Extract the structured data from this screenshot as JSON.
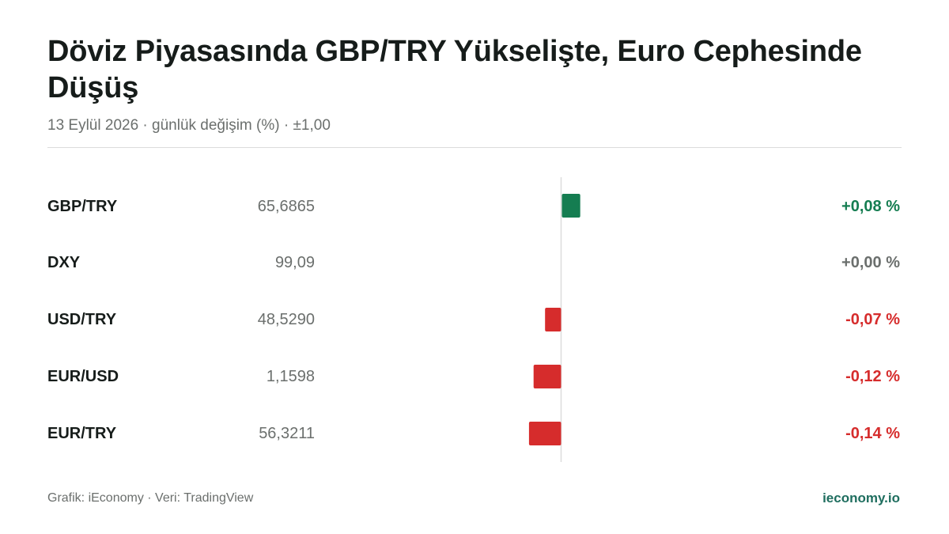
{
  "header": {
    "title": "Döviz Piyasasında GBP/TRY Yükselişte, Euro Cephesinde Düşüş",
    "subtitle": "13 Eylül 2026 · günlük değişim (%) · ±1,00"
  },
  "colors": {
    "positive": "#157d51",
    "negative": "#d62c2c",
    "neutral": "#6b6f6d",
    "axis": "#dcdcdc"
  },
  "chart_data": {
    "type": "bar",
    "orientation": "horizontal",
    "title": "Döviz Piyasasında GBP/TRY Yükselişte, Euro Cephesinde Düşüş",
    "subtitle": "13 Eylül 2026 · günlük değişim (%) · ±1,00",
    "categories": [
      "GBP/TRY",
      "DXY",
      "USD/TRY",
      "EUR/USD",
      "EUR/TRY"
    ],
    "prices": [
      "65,6865",
      "99,09",
      "48,5290",
      "1,1598",
      "56,3211"
    ],
    "values": [
      0.08,
      0.0,
      -0.07,
      -0.12,
      -0.14
    ],
    "value_labels": [
      "+0,08 %",
      "+0,00 %",
      "-0,07 %",
      "-0,12 %",
      "-0,14 %"
    ],
    "xlim": [
      -1,
      1
    ],
    "grid": false,
    "legend": "none"
  },
  "footer": {
    "source": "Grafik: iEconomy · Veri: TradingView",
    "brand": "ieconomy.io"
  }
}
